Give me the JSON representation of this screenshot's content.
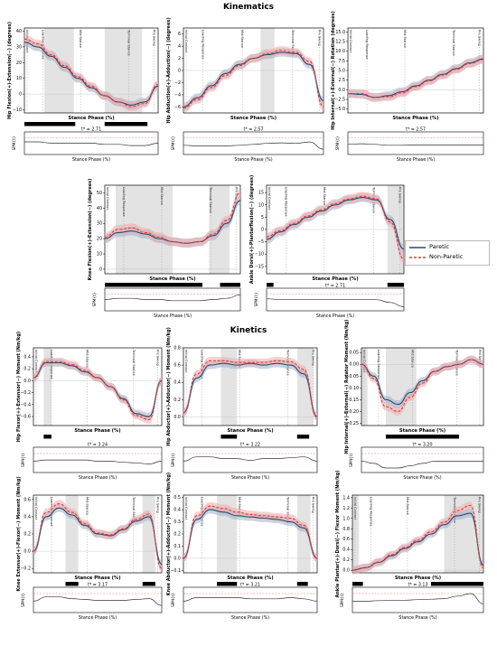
{
  "sections": {
    "kinematics": "Kinematics",
    "kinetics": "Kinetics"
  },
  "legend": {
    "paretic": "Paretic",
    "nonparetic": "Non-Paretic"
  },
  "colors": {
    "paretic": "#2c4a6b",
    "paretic_band": "#9fb0c6",
    "nonparetic": "#e03c3c",
    "nonparetic_band": "#f2a9a9",
    "phase_shade": "#d9d9d9",
    "sig_bar": "#000000",
    "threshold": "#e47c7c"
  },
  "chart_data": [
    {
      "id": "hip-flex",
      "type": "line",
      "ylabel": "Hip Flexion(+)-Extension(−) (degrees)",
      "xlabel": "Stance Phase (%)",
      "yticks": [
        "40",
        "30",
        "20",
        "10",
        "0",
        "−10"
      ],
      "ylim": [
        -12,
        42
      ],
      "phases": [
        "Initial Contact",
        "Loading Response",
        "Mid Stance",
        "Terminal Stance",
        "Pre Swing"
      ],
      "x": [
        0,
        10,
        20,
        30,
        40,
        50,
        60,
        70,
        80,
        90,
        100
      ],
      "series": [
        {
          "name": "Paretic",
          "values": [
            33,
            30,
            24,
            17,
            10,
            4,
            -1,
            -5,
            -7,
            -5,
            5
          ]
        },
        {
          "name": "Non-Paretic",
          "values": [
            35,
            32,
            25,
            18,
            11,
            5,
            -1,
            -5,
            -8,
            -6,
            6
          ]
        }
      ],
      "spm_tstar": "t* = 2.71",
      "spm_ylabel": "SPM{t}",
      "spm_xlabel": "Stance Phase (%)"
    },
    {
      "id": "hip-abd",
      "type": "line",
      "ylabel": "Hip Abduction(+)-Adduction(−) (degrees)",
      "xlabel": "Stance Phase (%)",
      "yticks": [
        "6",
        "4",
        "2",
        "0",
        "−2",
        "−4",
        "−6"
      ],
      "ylim": [
        -7,
        7
      ],
      "phases": [
        "Initial Contact",
        "Loading Response",
        "Mid Stance",
        "Terminal Stance",
        "Pre Swing"
      ],
      "x": [
        0,
        10,
        20,
        30,
        40,
        50,
        60,
        70,
        80,
        90,
        100
      ],
      "series": [
        {
          "name": "Paretic",
          "values": [
            -6,
            -4.5,
            -2.5,
            -0.5,
            1,
            2,
            2.6,
            3,
            2.8,
            1,
            -5
          ]
        },
        {
          "name": "Non-Paretic",
          "values": [
            -6.2,
            -4.8,
            -2.8,
            -0.8,
            0.8,
            2,
            2.8,
            3.3,
            3,
            1.5,
            -6
          ]
        }
      ],
      "spm_tstar": "t* = 2.57",
      "spm_ylabel": "SPM{t}",
      "spm_xlabel": "Stance Phase (%)"
    },
    {
      "id": "hip-rot",
      "type": "line",
      "ylabel": "Hip Internal(+)-External(−) Rotation (degrees)",
      "xlabel": "Stance Phase (%)",
      "yticks": [
        "15.0",
        "12.5",
        "10.0",
        "7.5",
        "5.0",
        "2.5",
        "0.0",
        "−2.5",
        "−5.0"
      ],
      "ylim": [
        -6,
        16
      ],
      "phases": [
        "Initial Contact",
        "Loading Response",
        "Mid Stance",
        "Terminal Stance",
        "Pre Swing"
      ],
      "x": [
        0,
        10,
        20,
        30,
        40,
        50,
        60,
        70,
        80,
        90,
        100
      ],
      "series": [
        {
          "name": "Paretic",
          "values": [
            -1,
            -1.2,
            -2,
            -1.5,
            -0.5,
            1,
            2.5,
            4,
            5.5,
            7,
            8
          ]
        },
        {
          "name": "Non-Paretic",
          "values": [
            -1,
            -1,
            -2,
            -1.8,
            -0.8,
            0.8,
            2.3,
            3.8,
            5.3,
            6.8,
            7.8
          ]
        }
      ],
      "spm_tstar": "t* = 2.57",
      "spm_ylabel": "SPM{t}",
      "spm_xlabel": "Stance Phase (%)"
    },
    {
      "id": "knee-flex",
      "type": "line",
      "ylabel": "Knee Flexion(+)-Extension(−) (degrees)",
      "xlabel": "Stance Phase (%)",
      "yticks": [
        "50",
        "40",
        "30",
        "20",
        "10",
        "0"
      ],
      "ylim": [
        -3,
        55
      ],
      "phases": [
        "Initial Contact",
        "Loading Response",
        "Mid Stance",
        "Terminal Stance",
        "Pre Swing"
      ],
      "x": [
        0,
        10,
        20,
        30,
        40,
        50,
        60,
        70,
        80,
        90,
        100
      ],
      "series": [
        {
          "name": "Paretic",
          "values": [
            20,
            24,
            25,
            23,
            20,
            18,
            17,
            18,
            22,
            30,
            45
          ]
        },
        {
          "name": "Non-Paretic",
          "values": [
            21,
            26,
            27,
            24,
            21,
            18,
            17,
            18,
            23,
            32,
            50
          ]
        }
      ],
      "spm_tstar": "t* = 2.72",
      "spm_ylabel": "SPM{t}",
      "spm_xlabel": "Stance Phase (%)"
    },
    {
      "id": "ankle-df",
      "type": "line",
      "ylabel": "Ankle Dorsi(+)-Plantarflexion(−) (degrees)",
      "xlabel": "Stance Phase (%)",
      "yticks": [
        "15",
        "10",
        "5",
        "0",
        "−5",
        "−10",
        "−15"
      ],
      "ylim": [
        -18,
        18
      ],
      "phases": [
        "Initial Contact",
        "Loading Response",
        "Mid Stance",
        "Terminal Stance",
        "Pre Swing"
      ],
      "x": [
        0,
        10,
        20,
        30,
        40,
        50,
        60,
        70,
        80,
        90,
        100
      ],
      "series": [
        {
          "name": "Paretic",
          "values": [
            -4,
            -1,
            2,
            5,
            7.5,
            10,
            12,
            13,
            12,
            4,
            -8
          ]
        },
        {
          "name": "Non-Paretic",
          "values": [
            -3,
            -0.5,
            2.5,
            5.5,
            8,
            10.5,
            12.5,
            13.5,
            12.5,
            3,
            -12
          ]
        }
      ],
      "spm_tstar": "t* = 2.71",
      "spm_ylabel": "SPM{t}",
      "spm_xlabel": "Stance Phase (%)"
    },
    {
      "id": "hip-fe-moment",
      "type": "line",
      "ylabel": "Hip Flexor(+)-Extensor(−) Moment (Nm/kg)",
      "xlabel": "Stance Phase (%)",
      "yticks": [
        "0.4",
        "0.2",
        "0.0",
        "−0.2",
        "−0.4",
        "−0.6"
      ],
      "ylim": [
        -0.75,
        0.55
      ],
      "phases": [
        "Initial Contact",
        "Loading Response",
        "Mid Stance",
        "Terminal Stance",
        "Pre Swing"
      ],
      "x": [
        0,
        10,
        20,
        30,
        40,
        50,
        60,
        70,
        80,
        90,
        100
      ],
      "series": [
        {
          "name": "Paretic",
          "values": [
            0.05,
            0.3,
            0.3,
            0.25,
            0.15,
            0.05,
            -0.1,
            -0.3,
            -0.55,
            -0.6,
            0
          ]
        },
        {
          "name": "Non-Paretic",
          "values": [
            0.05,
            0.32,
            0.32,
            0.27,
            0.17,
            0.05,
            -0.1,
            -0.32,
            -0.58,
            -0.65,
            0
          ]
        }
      ],
      "spm_tstar": "t* = 3.24",
      "spm_ylabel": "SPM{t}",
      "spm_xlabel": "Stance Phase (%)"
    },
    {
      "id": "hip-aa-moment",
      "type": "line",
      "ylabel": "Hip Abductor(+)-Adductor(−) Moment (Nm/kg)",
      "xlabel": "Stance Phase (%)",
      "yticks": [
        "0.8",
        "0.6",
        "0.4",
        "0.2",
        "0.0"
      ],
      "ylim": [
        -0.1,
        0.8
      ],
      "phases": [
        "Initial Contact",
        "Loading Response",
        "Mid Stance",
        "Terminal Stance",
        "Pre Swing"
      ],
      "x": [
        0,
        10,
        20,
        30,
        40,
        50,
        60,
        70,
        80,
        90,
        100
      ],
      "series": [
        {
          "name": "Paretic",
          "values": [
            0.05,
            0.45,
            0.6,
            0.62,
            0.6,
            0.62,
            0.6,
            0.62,
            0.6,
            0.5,
            0
          ]
        },
        {
          "name": "Non-Paretic",
          "values": [
            0.05,
            0.5,
            0.65,
            0.65,
            0.63,
            0.63,
            0.63,
            0.65,
            0.64,
            0.55,
            0
          ]
        }
      ],
      "spm_tstar": "t* = 3.22",
      "spm_ylabel": "SPM{t}",
      "spm_xlabel": "Stance Phase (%)"
    },
    {
      "id": "hip-ie-moment",
      "type": "line",
      "ylabel": "Hip Internal(+)-External(−) Rotator Moment (Nm/kg)",
      "xlabel": "Stance Phase (%)",
      "yticks": [
        "0.05",
        "0.00",
        "−0.05",
        "−0.10",
        "−0.15",
        "−0.20",
        "−0.25"
      ],
      "ylim": [
        -0.26,
        0.07
      ],
      "phases": [
        "Initial Contact",
        "Loading Response",
        "Mid Stance",
        "Terminal Stance",
        "Pre Swing"
      ],
      "x": [
        0,
        10,
        20,
        30,
        40,
        50,
        60,
        70,
        80,
        90,
        100
      ],
      "series": [
        {
          "name": "Paretic",
          "values": [
            0,
            -0.05,
            -0.15,
            -0.17,
            -0.12,
            -0.07,
            -0.03,
            -0.01,
            0,
            0.02,
            0
          ]
        },
        {
          "name": "Non-Paretic",
          "values": [
            0,
            -0.06,
            -0.18,
            -0.2,
            -0.14,
            -0.08,
            -0.03,
            -0.01,
            0,
            0.02,
            0
          ]
        }
      ],
      "spm_tstar": "t* = 3.20",
      "spm_ylabel": "SPM{t}",
      "spm_xlabel": "Stance Phase (%)"
    },
    {
      "id": "knee-ef-moment",
      "type": "line",
      "ylabel": "Knee Extensor(+)-Flexor(−) Moment (Nm/kg)",
      "xlabel": "Stance Phase (%)",
      "yticks": [
        "0.6",
        "0.4",
        "0.2",
        "0.0",
        "−0.2"
      ],
      "ylim": [
        -0.25,
        0.65
      ],
      "phases": [
        "Initial Contact",
        "Loading Response",
        "Mid Stance",
        "Terminal Stance",
        "Pre Swing"
      ],
      "x": [
        0,
        10,
        20,
        30,
        40,
        50,
        60,
        70,
        80,
        90,
        100
      ],
      "series": [
        {
          "name": "Paretic",
          "values": [
            0,
            0.4,
            0.5,
            0.42,
            0.3,
            0.2,
            0.18,
            0.25,
            0.35,
            0.4,
            -0.15
          ]
        },
        {
          "name": "Non-Paretic",
          "values": [
            0,
            0.45,
            0.55,
            0.45,
            0.32,
            0.21,
            0.19,
            0.26,
            0.37,
            0.43,
            -0.2
          ]
        }
      ],
      "spm_tstar": "t* = 3.17",
      "spm_ylabel": "SPM{t}",
      "spm_xlabel": "Stance Phase (%)"
    },
    {
      "id": "knee-aa-moment",
      "type": "line",
      "ylabel": "Knee Abductor(+)-Adductor(−) Moment (Nm/kg)",
      "xlabel": "Stance Phase (%)",
      "yticks": [
        "0.5",
        "0.4",
        "0.3",
        "0.2",
        "0.1",
        "0.0",
        "−0.1"
      ],
      "ylim": [
        -0.12,
        0.52
      ],
      "phases": [
        "Initial Contact",
        "Loading Response",
        "Mid Stance",
        "Terminal Stance",
        "Pre Swing"
      ],
      "x": [
        0,
        10,
        20,
        30,
        40,
        50,
        60,
        70,
        80,
        90,
        100
      ],
      "series": [
        {
          "name": "Paretic",
          "values": [
            0,
            0.32,
            0.4,
            0.38,
            0.35,
            0.34,
            0.33,
            0.32,
            0.3,
            0.25,
            0
          ]
        },
        {
          "name": "Non-Paretic",
          "values": [
            0,
            0.35,
            0.43,
            0.41,
            0.38,
            0.36,
            0.35,
            0.34,
            0.33,
            0.27,
            0
          ]
        }
      ],
      "spm_tstar": "t* = 3.21",
      "spm_ylabel": "SPM{t}",
      "spm_xlabel": "Stance Phase (%)"
    },
    {
      "id": "ankle-pd-moment",
      "type": "line",
      "ylabel": "Ankle Plantar(+)-Dorsi(−) Flexor Moment (Nm/kg)",
      "xlabel": "Stance Phase (%)",
      "yticks": [
        "1.4",
        "1.2",
        "1.0",
        "0.8",
        "0.6",
        "0.4",
        "0.2",
        "0.0"
      ],
      "ylim": [
        -0.05,
        1.45
      ],
      "phases": [
        "Initial Contact",
        "Loading Response",
        "Mid Stance",
        "Terminal Stance",
        "Pre Swing"
      ],
      "x": [
        0,
        10,
        20,
        30,
        40,
        50,
        60,
        70,
        80,
        90,
        100
      ],
      "series": [
        {
          "name": "Paretic",
          "values": [
            0,
            0.05,
            0.15,
            0.28,
            0.42,
            0.55,
            0.7,
            0.88,
            1.05,
            1.1,
            0.1
          ]
        },
        {
          "name": "Non-Paretic",
          "values": [
            0,
            0.05,
            0.16,
            0.3,
            0.44,
            0.58,
            0.74,
            0.93,
            1.15,
            1.25,
            0.05
          ]
        }
      ],
      "spm_tstar": "t* = 3.13",
      "spm_ylabel": "SPM{t}",
      "spm_xlabel": "Stance Phase (%)"
    }
  ]
}
